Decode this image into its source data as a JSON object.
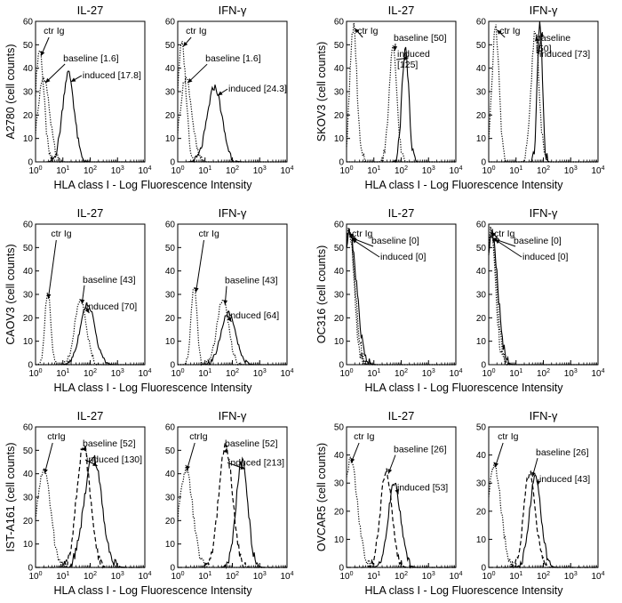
{
  "chart_data": [
    {
      "type": "line",
      "ylabel": "A2780 (cell counts)",
      "xlabel": "HLA class I - Log Fluorescence Intensity",
      "ylim": [
        0,
        60
      ],
      "xlim_log10": [
        0,
        4
      ],
      "panels": [
        {
          "title": "IL-27",
          "annotations": {
            "ctr": "ctr Ig",
            "baseline": "baseline [1.6]",
            "induced": "induced [17.8]"
          },
          "series": [
            {
              "name": "ctr Ig",
              "style": "dotted",
              "center_log10": 0.15,
              "width": 0.22,
              "peak": 48
            },
            {
              "name": "baseline",
              "style": "dotted",
              "center_log10": 0.3,
              "width": 0.3,
              "peak": 36
            },
            {
              "name": "induced",
              "style": "solid",
              "center_log10": 1.2,
              "width": 0.3,
              "peak": 38
            }
          ]
        },
        {
          "title": "IFN-γ",
          "annotations": {
            "ctr": "ctr Ig",
            "baseline": "baseline [1.6]",
            "induced": "induced [24.3]"
          },
          "series": [
            {
              "name": "ctr Ig",
              "style": "dotted",
              "center_log10": 0.15,
              "width": 0.22,
              "peak": 50
            },
            {
              "name": "baseline",
              "style": "dotted",
              "center_log10": 0.3,
              "width": 0.3,
              "peak": 36
            },
            {
              "name": "induced",
              "style": "solid",
              "center_log10": 1.35,
              "width": 0.38,
              "peak": 32
            }
          ]
        }
      ]
    },
    {
      "type": "line",
      "ylabel": "SKOV3 (cell counts)",
      "xlabel": "HLA class I - Log Fluorescence Intensity",
      "ylim": [
        0,
        60
      ],
      "xlim_log10": [
        0,
        4
      ],
      "panels": [
        {
          "title": "IL-27",
          "annotations": {
            "ctr": "ctr Ig",
            "baseline": "baseline [50]",
            "induced": "induced\n[125]"
          },
          "series": [
            {
              "name": "ctr Ig",
              "style": "dotted",
              "center_log10": 0.25,
              "width": 0.18,
              "peak": 58
            },
            {
              "name": "baseline",
              "style": "dotted",
              "center_log10": 1.7,
              "width": 0.2,
              "peak": 48
            },
            {
              "name": "induced",
              "style": "solid",
              "center_log10": 2.15,
              "width": 0.18,
              "peak": 48
            }
          ]
        },
        {
          "title": "IFN-γ",
          "annotations": {
            "ctr": "ctr Ig",
            "baseline": "baseline\n[50]",
            "induced": "induced [73]"
          },
          "series": [
            {
              "name": "ctr Ig",
              "style": "dotted",
              "center_log10": 0.25,
              "width": 0.18,
              "peak": 58
            },
            {
              "name": "baseline",
              "style": "dotted",
              "center_log10": 1.7,
              "width": 0.2,
              "peak": 56
            },
            {
              "name": "induced",
              "style": "solid",
              "center_log10": 1.87,
              "width": 0.13,
              "peak": 60
            }
          ]
        }
      ]
    },
    {
      "type": "line",
      "ylabel": "CAOV3 (cell counts)",
      "xlabel": "HLA class I - Log Fluorescence Intensity",
      "ylim": [
        0,
        60
      ],
      "xlim_log10": [
        0,
        4
      ],
      "panels": [
        {
          "title": "IL-27",
          "annotations": {
            "ctr": "ctr Ig",
            "baseline": "baseline [43]",
            "induced": "induced [70]"
          },
          "series": [
            {
              "name": "ctr Ig",
              "style": "dotted",
              "center_log10": 0.45,
              "width": 0.15,
              "peak": 32
            },
            {
              "name": "baseline",
              "style": "dotted",
              "center_log10": 1.65,
              "width": 0.3,
              "peak": 28
            },
            {
              "name": "induced",
              "style": "solid",
              "center_log10": 1.9,
              "width": 0.38,
              "peak": 26
            }
          ]
        },
        {
          "title": "IFN-γ",
          "annotations": {
            "ctr": "ctr Ig",
            "baseline": "baseline [43]",
            "induced": "induced [64]"
          },
          "series": [
            {
              "name": "ctr Ig",
              "style": "dotted",
              "center_log10": 0.6,
              "width": 0.15,
              "peak": 34
            },
            {
              "name": "baseline",
              "style": "dotted",
              "center_log10": 1.65,
              "width": 0.3,
              "peak": 28
            },
            {
              "name": "induced",
              "style": "solid",
              "center_log10": 1.85,
              "width": 0.38,
              "peak": 22
            }
          ]
        }
      ]
    },
    {
      "type": "line",
      "ylabel": "OC316 (cell counts)",
      "xlabel": "HLA class I - Log Fluorescence Intensity",
      "ylim": [
        0,
        60
      ],
      "xlim_log10": [
        0,
        4
      ],
      "panels": [
        {
          "title": "IL-27",
          "annotations": {
            "ctr": "ctr Ig",
            "baseline": "baseline [0]",
            "induced": "induced [0]"
          },
          "series": [
            {
              "name": "ctr Ig",
              "style": "dotted",
              "center_log10": 0.1,
              "width": 0.25,
              "peak": 58
            },
            {
              "name": "baseline",
              "style": "dotted",
              "center_log10": 0.1,
              "width": 0.3,
              "peak": 57
            },
            {
              "name": "induced",
              "style": "solid",
              "center_log10": 0.12,
              "width": 0.35,
              "peak": 56
            }
          ]
        },
        {
          "title": "IFN-γ",
          "annotations": {
            "ctr": "ctr Ig",
            "baseline": "baseline [0]",
            "induced": "induced [0]"
          },
          "series": [
            {
              "name": "ctr Ig",
              "style": "dotted",
              "center_log10": 0.1,
              "width": 0.22,
              "peak": 58
            },
            {
              "name": "baseline",
              "style": "dotted",
              "center_log10": 0.1,
              "width": 0.27,
              "peak": 57
            },
            {
              "name": "induced",
              "style": "solid",
              "center_log10": 0.12,
              "width": 0.3,
              "peak": 56
            }
          ]
        }
      ]
    },
    {
      "type": "line",
      "ylabel": "IST-A161 (cell counts)",
      "xlabel": "HLA class I - Log Fluorescence Intensity",
      "ylim": [
        0,
        60
      ],
      "xlim_log10": [
        0,
        4
      ],
      "panels": [
        {
          "title": "IL-27",
          "annotations": {
            "ctr": "ctrIg",
            "baseline": "baseline [52]",
            "induced": "induced [130]"
          },
          "series": [
            {
              "name": "ctr Ig",
              "style": "dotted",
              "center_log10": 0.3,
              "width": 0.35,
              "peak": 42
            },
            {
              "name": "baseline",
              "style": "dashed",
              "center_log10": 1.75,
              "width": 0.35,
              "peak": 52
            },
            {
              "name": "induced",
              "style": "solid",
              "center_log10": 2.1,
              "width": 0.45,
              "peak": 48
            }
          ]
        },
        {
          "title": "IFN-γ",
          "annotations": {
            "ctr": "ctrIg",
            "baseline": "baseline [52]",
            "induced": "induced [213]"
          },
          "series": [
            {
              "name": "ctr Ig",
              "style": "dotted",
              "center_log10": 0.3,
              "width": 0.35,
              "peak": 42
            },
            {
              "name": "baseline",
              "style": "dashed",
              "center_log10": 1.75,
              "width": 0.35,
              "peak": 52
            },
            {
              "name": "induced",
              "style": "solid",
              "center_log10": 2.35,
              "width": 0.3,
              "peak": 45
            }
          ]
        }
      ]
    },
    {
      "type": "line",
      "ylabel": "OVCAR5 (cell counts)",
      "xlabel": "HLA class I - Log Fluorescence Intensity",
      "ylim": [
        0,
        50
      ],
      "xlim_log10": [
        0,
        4
      ],
      "panels": [
        {
          "title": "IL-27",
          "annotations": {
            "ctr": "ctr Ig",
            "baseline": "baseline [26]",
            "induced": "induced [53]"
          },
          "series": [
            {
              "name": "ctr Ig",
              "style": "dotted",
              "center_log10": 0.15,
              "width": 0.35,
              "peak": 38
            },
            {
              "name": "baseline",
              "style": "dashed",
              "center_log10": 1.45,
              "width": 0.3,
              "peak": 34
            },
            {
              "name": "induced",
              "style": "solid",
              "center_log10": 1.75,
              "width": 0.32,
              "peak": 30
            }
          ]
        },
        {
          "title": "IFN-γ",
          "annotations": {
            "ctr": "ctr Ig",
            "baseline": "baseline [26]",
            "induced": "induced [43]"
          },
          "series": [
            {
              "name": "ctr Ig",
              "style": "dotted",
              "center_log10": 0.2,
              "width": 0.35,
              "peak": 36
            },
            {
              "name": "baseline",
              "style": "dashed",
              "center_log10": 1.5,
              "width": 0.3,
              "peak": 34
            },
            {
              "name": "induced",
              "style": "solid",
              "center_log10": 1.7,
              "width": 0.3,
              "peak": 32
            }
          ]
        }
      ]
    }
  ]
}
